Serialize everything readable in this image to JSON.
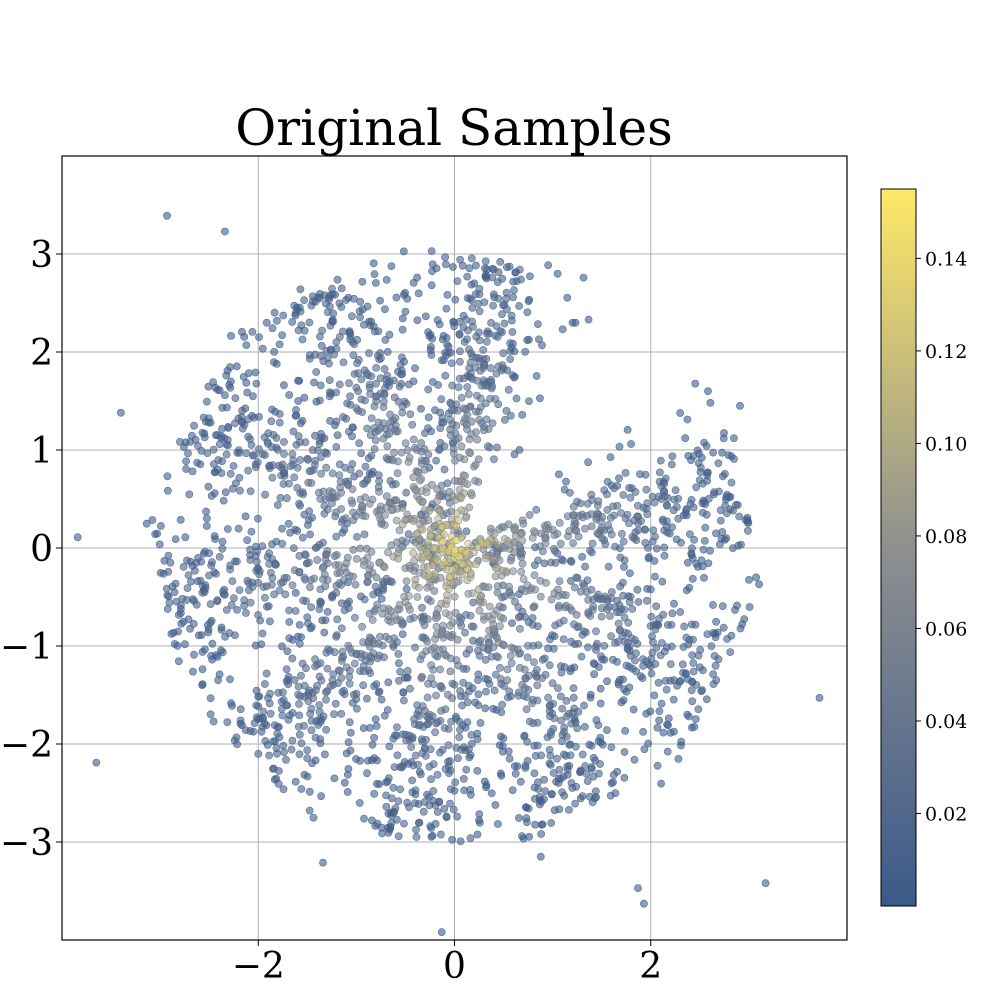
{
  "chart_data": {
    "type": "scatter",
    "title": "Original Samples",
    "xlabel": "",
    "ylabel": "",
    "xlim": [
      -4,
      4
    ],
    "ylim": [
      -4,
      4
    ],
    "grid": true,
    "x_ticks": [
      {
        "value": -2,
        "label": "−2"
      },
      {
        "value": 0,
        "label": "0"
      },
      {
        "value": 2,
        "label": "2"
      }
    ],
    "y_ticks": [
      {
        "value": 3,
        "label": "3"
      },
      {
        "value": 2,
        "label": "2"
      },
      {
        "value": 1,
        "label": "1"
      },
      {
        "value": 0,
        "label": "0"
      },
      {
        "value": -1,
        "label": "−1"
      },
      {
        "value": -2,
        "label": "−2"
      },
      {
        "value": -3,
        "label": "−3"
      }
    ],
    "pinwheel_arm_angles_deg": [
      10,
      82,
      118,
      154,
      190,
      226,
      262,
      298,
      334,
      370
    ],
    "point_opacity": 0.6,
    "colormap": "cividis",
    "colorbar": {
      "range": [
        0.0,
        0.155
      ],
      "ticks": [
        {
          "value": 0.02,
          "label": "0.02"
        },
        {
          "value": 0.04,
          "label": "0.04"
        },
        {
          "value": 0.06,
          "label": "0.06"
        },
        {
          "value": 0.08,
          "label": "0.08"
        },
        {
          "value": 0.1,
          "label": "0.10"
        },
        {
          "value": 0.12,
          "label": "0.12"
        },
        {
          "value": 0.14,
          "label": "0.14"
        }
      ],
      "low_color": "#3b5a8a",
      "mid_color": "#8e8f90",
      "high_color": "#ffe866"
    },
    "outlier_points": [
      [
        -2.93,
        3.39
      ],
      [
        -2.34,
        3.23
      ],
      [
        -3.4,
        1.38
      ],
      [
        -3.84,
        0.11
      ],
      [
        -3.65,
        -2.19
      ],
      [
        -0.13,
        -3.92
      ],
      [
        -1.34,
        -3.21
      ],
      [
        1.87,
        -3.47
      ],
      [
        1.93,
        -3.63
      ],
      [
        3.17,
        -3.42
      ],
      [
        3.72,
        -1.53
      ],
      [
        2.91,
        1.45
      ],
      [
        0.88,
        -3.15
      ],
      [
        -1.57,
        2.64
      ]
    ]
  }
}
